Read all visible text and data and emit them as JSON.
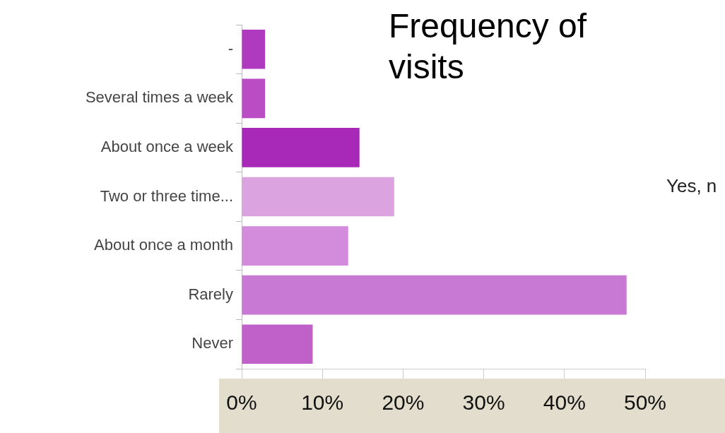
{
  "chart_data": {
    "type": "bar",
    "orientation": "horizontal",
    "title": "Frequency of visits",
    "categories": [
      "-",
      "Several times a week",
      "About once a week",
      "Two or three time...",
      "About once a month",
      "Rarely",
      "Never"
    ],
    "values": [
      2.9,
      2.9,
      14.6,
      18.9,
      13.2,
      47.7,
      8.8
    ],
    "colors": [
      "#b03abf",
      "#ba4cc4",
      "#a829b8",
      "#dba3df",
      "#d38bdb",
      "#c879d4",
      "#c060c9"
    ],
    "xlim": [
      0,
      50
    ],
    "xticks": [
      {
        "value": 0,
        "label": "0%"
      },
      {
        "value": 10,
        "label": "10%"
      },
      {
        "value": 20,
        "label": "20%"
      },
      {
        "value": 30,
        "label": "30%"
      },
      {
        "value": 40,
        "label": "40%"
      },
      {
        "value": 50,
        "label": "50%"
      }
    ],
    "annotations": [
      "Yes, n"
    ],
    "legend": false,
    "grid": false
  }
}
